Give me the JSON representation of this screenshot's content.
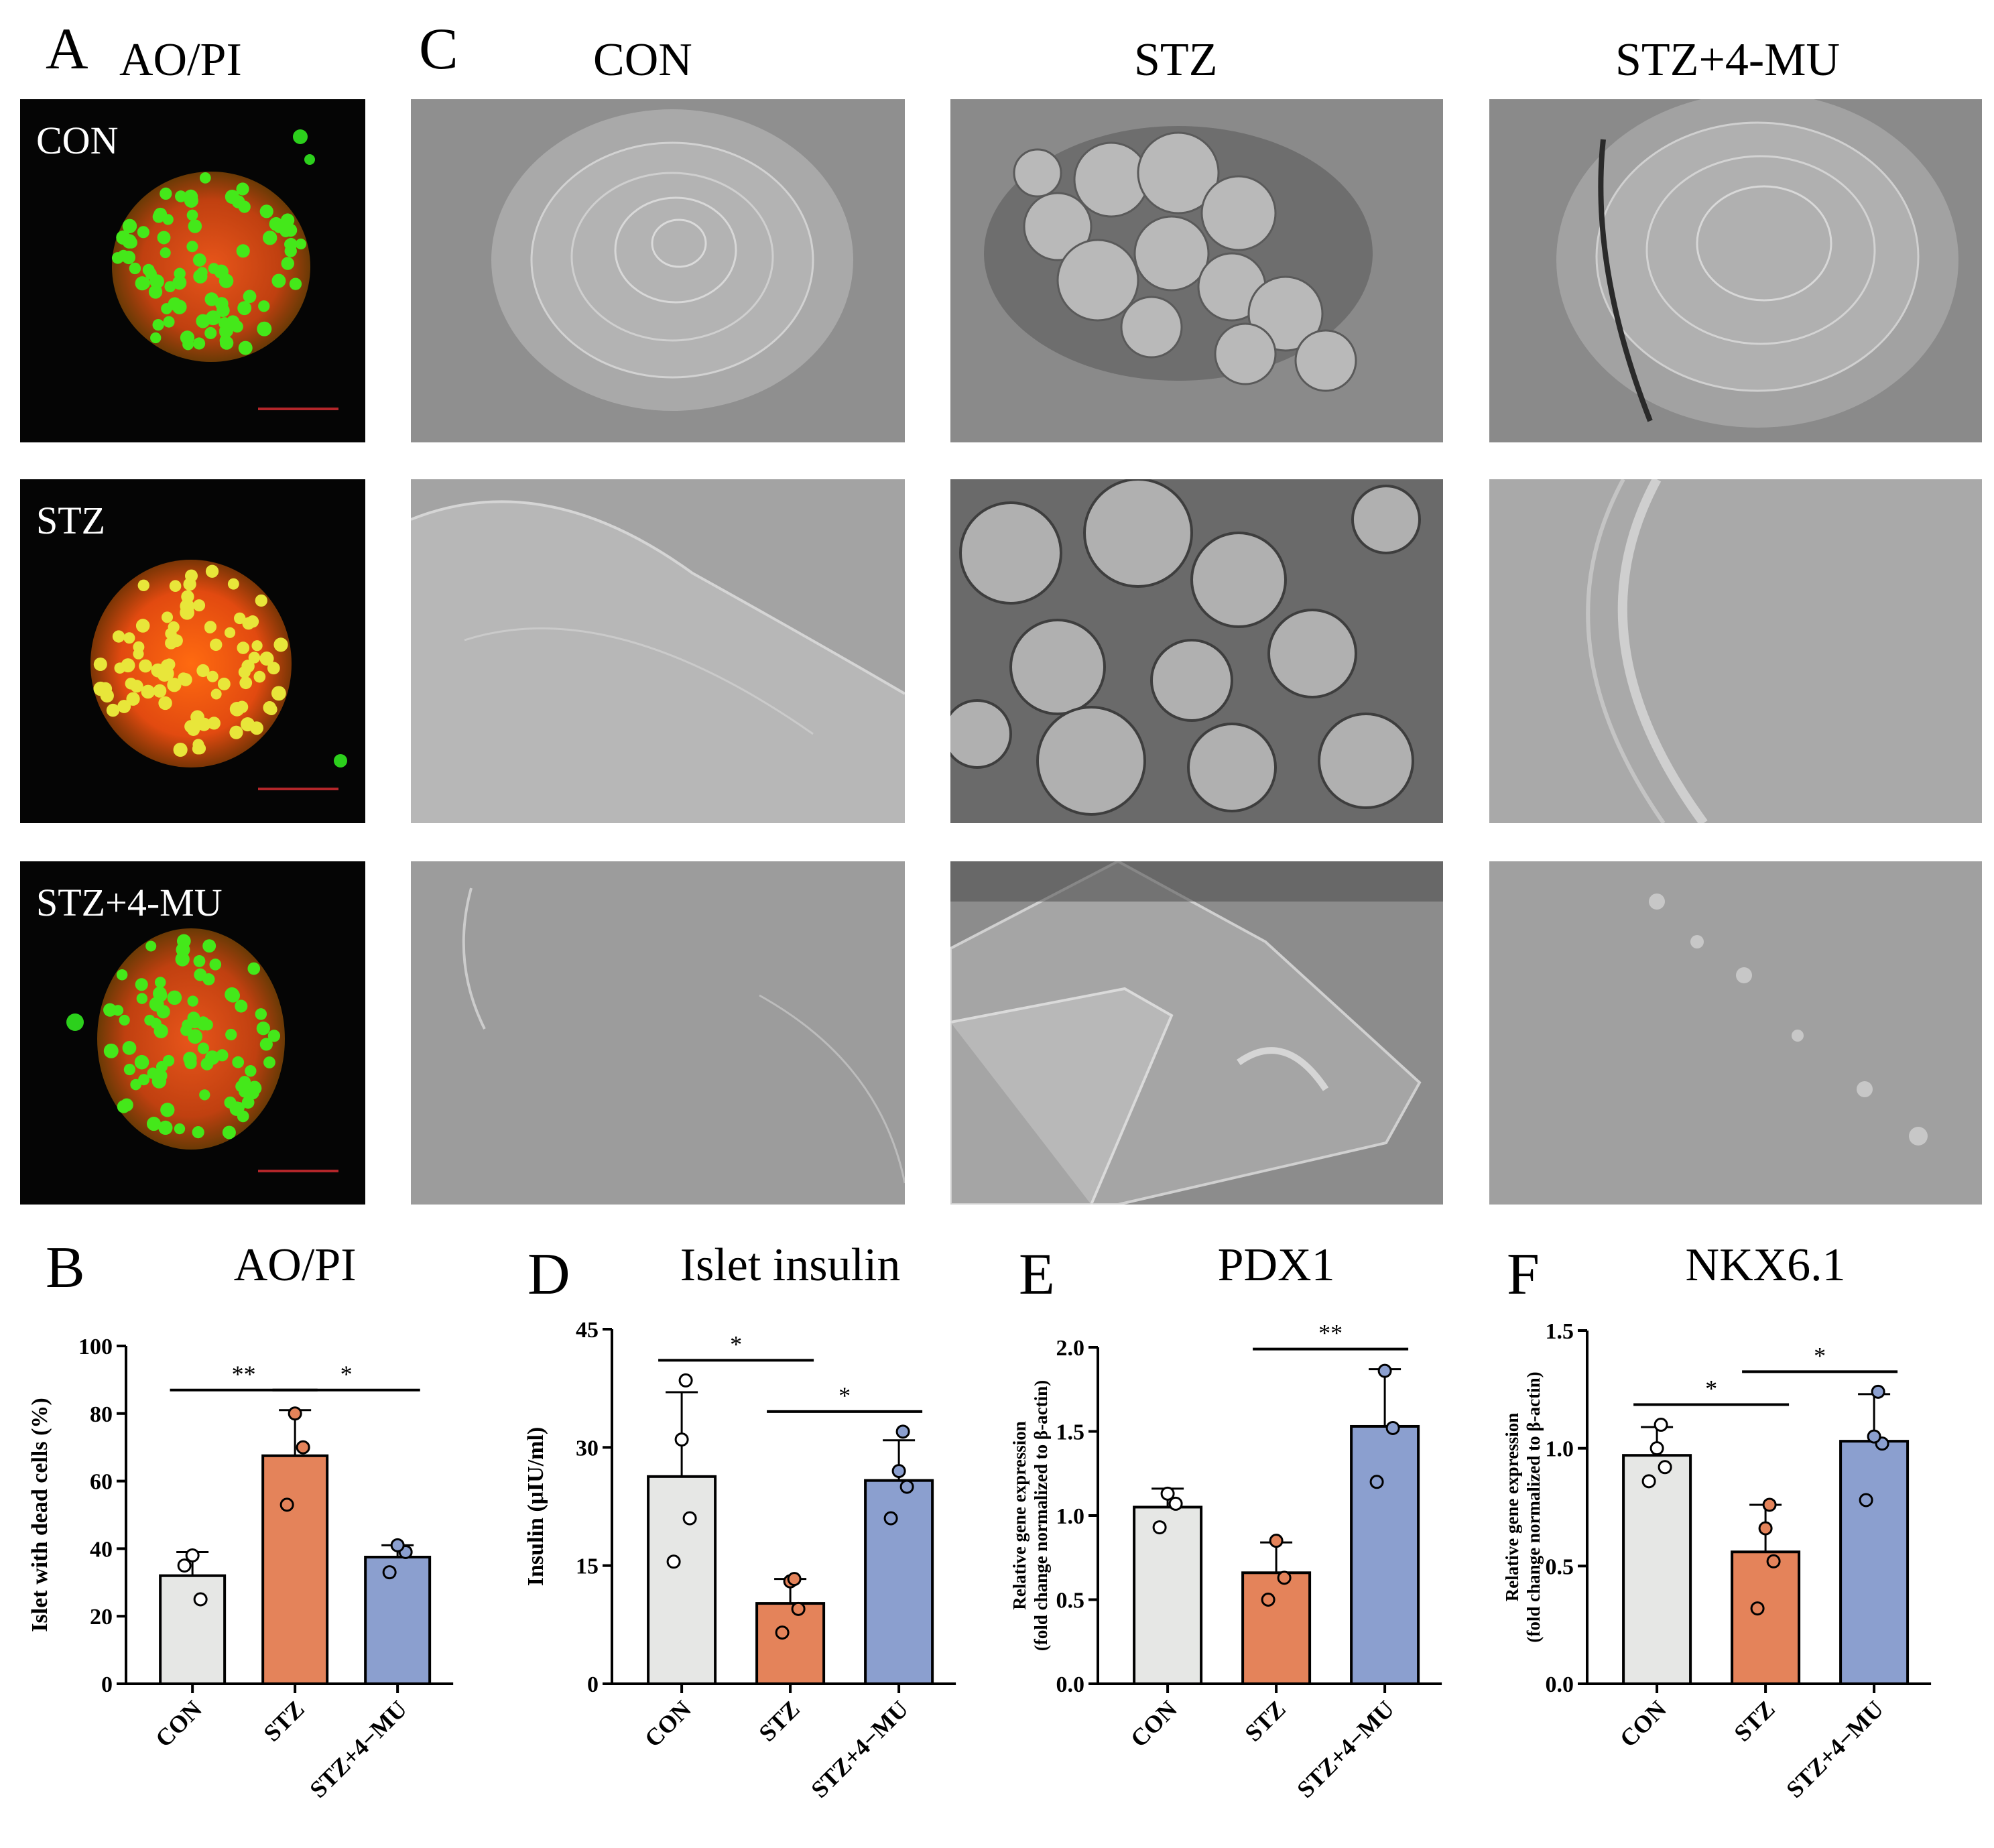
{
  "panel_a": {
    "letter": "A",
    "title": "AO/PI",
    "rows": [
      {
        "label": "CON"
      },
      {
        "label": "STZ"
      },
      {
        "label": "STZ+4-MU"
      }
    ]
  },
  "panel_c": {
    "letter": "C",
    "columns": [
      {
        "title": "CON"
      },
      {
        "title": "STZ"
      },
      {
        "title": "STZ+4-MU"
      }
    ]
  },
  "colors": {
    "con": "#e6e7e5",
    "stz": "#e4835a",
    "stz_4mu": "#8b9fcf"
  },
  "chart_data": [
    {
      "panel": "B",
      "type": "bar",
      "title": "AO/PI",
      "ylabel": "Islet with dead cells (%)",
      "ylim": [
        0,
        100
      ],
      "yticks": [
        "0",
        "20",
        "40",
        "60",
        "80",
        "100"
      ],
      "categories": [
        "CON",
        "STZ",
        "STZ+4−MU"
      ],
      "values": [
        32,
        67.5,
        37.5
      ],
      "errors": [
        7,
        13.5,
        3.5
      ],
      "points": [
        [
          35,
          25,
          38
        ],
        [
          53,
          70,
          80
        ],
        [
          33,
          39,
          41
        ]
      ],
      "significance": [
        {
          "from": 0,
          "to": 1,
          "label": "**"
        },
        {
          "from": 1,
          "to": 2,
          "label": "*"
        }
      ]
    },
    {
      "panel": "D",
      "type": "bar",
      "title": "Islet insulin",
      "ylabel": "Insulin (μIU/ml)",
      "ylim": [
        0,
        45
      ],
      "yticks": [
        "0",
        "15",
        "30",
        "45"
      ],
      "categories": [
        "CON",
        "STZ",
        "STZ+4−MU"
      ],
      "values": [
        26.3,
        10.2,
        25.8
      ],
      "errors": [
        10.7,
        3.1,
        5.1
      ],
      "points": [
        [
          15.5,
          21,
          31,
          38.5
        ],
        [
          6.5,
          9.5,
          13,
          13.3
        ],
        [
          21,
          25,
          27,
          32
        ]
      ],
      "significance": [
        {
          "from": 0,
          "to": 1,
          "label": "*"
        },
        {
          "from": 1,
          "to": 2,
          "label": "*"
        }
      ]
    },
    {
      "panel": "E",
      "type": "bar",
      "title": "PDX1",
      "ylabel": "Relative gene expression",
      "ylabel2": "(fold change normalized to β-actin)",
      "ylim": [
        0,
        2.0
      ],
      "yticks": [
        "0.0",
        "0.5",
        "1.0",
        "1.5",
        "2.0"
      ],
      "categories": [
        "CON",
        "STZ",
        "STZ+4−MU"
      ],
      "values": [
        1.05,
        0.66,
        1.53
      ],
      "errors": [
        0.11,
        0.18,
        0.34
      ],
      "points": [
        [
          0.93,
          1.07,
          1.13
        ],
        [
          0.5,
          0.63,
          0.85
        ],
        [
          1.2,
          1.52,
          1.86
        ]
      ],
      "significance": [
        {
          "from": 1,
          "to": 2,
          "label": "**"
        }
      ]
    },
    {
      "panel": "F",
      "type": "bar",
      "title": "NKX6.1",
      "ylabel": "Relative gene expression",
      "ylabel2": "(fold change normalized to β-actin)",
      "ylim": [
        0,
        1.5
      ],
      "yticks": [
        "0.0",
        "0.5",
        "1.0",
        "1.5"
      ],
      "categories": [
        "CON",
        "STZ",
        "STZ+4−MU"
      ],
      "values": [
        0.97,
        0.56,
        1.03
      ],
      "errors": [
        0.12,
        0.2,
        0.2
      ],
      "points": [
        [
          0.86,
          0.92,
          1.0,
          1.1
        ],
        [
          0.32,
          0.52,
          0.66,
          0.76
        ],
        [
          0.78,
          1.02,
          1.05,
          1.24
        ]
      ],
      "significance": [
        {
          "from": 0,
          "to": 1,
          "label": "*"
        },
        {
          "from": 1,
          "to": 2,
          "label": "*"
        }
      ]
    }
  ]
}
